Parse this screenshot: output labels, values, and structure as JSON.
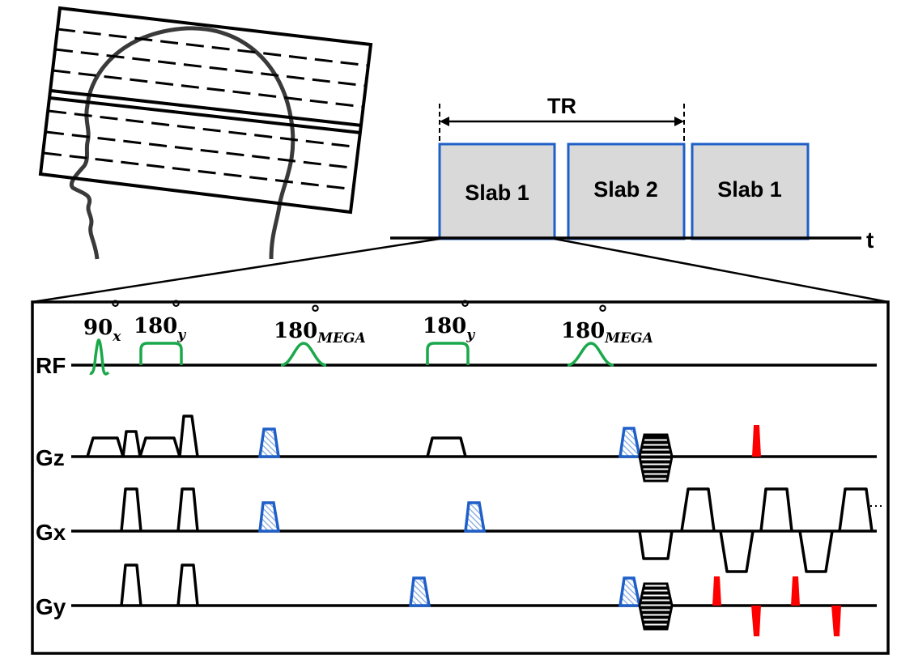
{
  "timing": {
    "tr_label": "TR",
    "time_label": "t",
    "slabs": [
      "Slab 1",
      "Slab 2",
      "Slab 1"
    ]
  },
  "sequence": {
    "axes": [
      "RF",
      "Gz",
      "Gx",
      "Gy"
    ],
    "rf_pulses": [
      {
        "base": "90",
        "sub": "x"
      },
      {
        "base": "180",
        "sub": "y"
      },
      {
        "base": "180",
        "sub": "MEGA"
      },
      {
        "base": "180",
        "sub": "y"
      },
      {
        "base": "180",
        "sub": "MEGA"
      }
    ],
    "degree_symbol": "°"
  },
  "colors": {
    "rf_pulse": "#1aa84a",
    "slab_border": "#1f5fc8",
    "slab_fill": "#d9d9d9",
    "crusher": "#1f5fc8",
    "blip": "#ff0000"
  }
}
